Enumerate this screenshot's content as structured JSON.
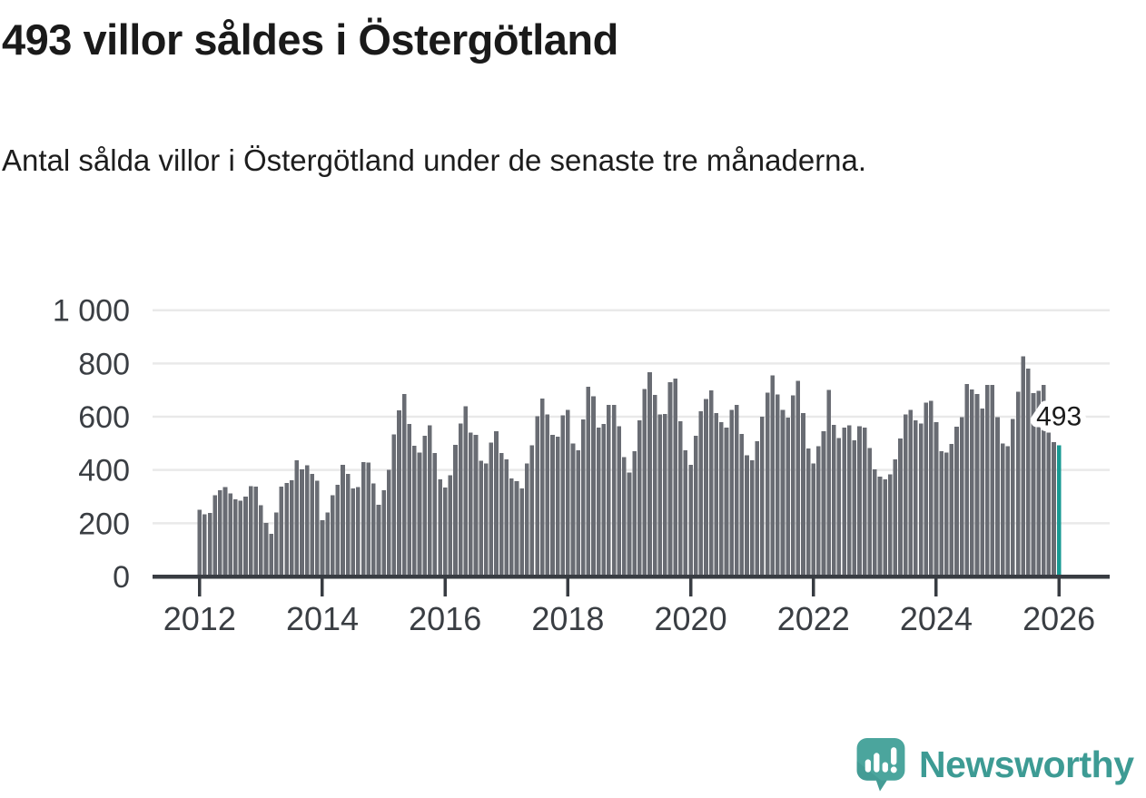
{
  "header": {
    "title": "493 villor såldes i Östergötland",
    "subtitle": "Antal sålda villor i Östergötland under de senaste tre månaderna."
  },
  "chart_data": {
    "type": "bar",
    "title": "493 villor såldes i Östergötland",
    "xlabel": "",
    "ylabel": "",
    "ylim": [
      0,
      1000
    ],
    "grid": true,
    "legend_position": "none",
    "x_start_year": 2012,
    "bars_per_year": 12,
    "y_ticks": [
      {
        "value": 0,
        "label": "0"
      },
      {
        "value": 200,
        "label": "200"
      },
      {
        "value": 400,
        "label": "400"
      },
      {
        "value": 600,
        "label": "600"
      },
      {
        "value": 800,
        "label": "800"
      },
      {
        "value": 1000,
        "label": "1 000"
      }
    ],
    "x_ticks": [
      {
        "year": 2012,
        "label": "2012"
      },
      {
        "year": 2014,
        "label": "2014"
      },
      {
        "year": 2016,
        "label": "2016"
      },
      {
        "year": 2018,
        "label": "2018"
      },
      {
        "year": 2020,
        "label": "2020"
      },
      {
        "year": 2022,
        "label": "2022"
      },
      {
        "year": 2024,
        "label": "2024"
      },
      {
        "year": 2026,
        "label": "2026"
      }
    ],
    "values": [
      250,
      233,
      238,
      305,
      324,
      335,
      312,
      290,
      285,
      300,
      340,
      338,
      267,
      202,
      160,
      240,
      337,
      352,
      362,
      436,
      402,
      417,
      385,
      360,
      212,
      240,
      305,
      345,
      420,
      385,
      330,
      335,
      430,
      428,
      350,
      270,
      324,
      400,
      534,
      624,
      686,
      573,
      491,
      466,
      528,
      567,
      464,
      364,
      334,
      381,
      494,
      574,
      640,
      540,
      532,
      435,
      424,
      503,
      545,
      464,
      440,
      369,
      358,
      330,
      424,
      492,
      602,
      668,
      608,
      532,
      525,
      606,
      625,
      500,
      474,
      590,
      712,
      676,
      559,
      572,
      644,
      644,
      565,
      449,
      390,
      471,
      587,
      704,
      767,
      682,
      608,
      611,
      730,
      744,
      583,
      474,
      420,
      528,
      621,
      667,
      699,
      614,
      580,
      559,
      625,
      644,
      536,
      455,
      437,
      508,
      600,
      691,
      756,
      684,
      625,
      597,
      680,
      735,
      614,
      481,
      424,
      489,
      545,
      700,
      570,
      520,
      560,
      567,
      511,
      565,
      559,
      483,
      403,
      375,
      364,
      383,
      440,
      519,
      608,
      625,
      587,
      574,
      653,
      659,
      580,
      471,
      466,
      497,
      562,
      599,
      723,
      702,
      685,
      631,
      720,
      720,
      599,
      500,
      489,
      591,
      693,
      826,
      781,
      688,
      697,
      719,
      540,
      505,
      493
    ],
    "highlight_last_bar": true,
    "annotation": {
      "text": "493",
      "value": 493
    },
    "colors": {
      "bar": "#696c73",
      "highlight_bar": "#189a93",
      "gridline": "#e9e9e9",
      "axis": "#383c42",
      "tick_label": "#3a3e43",
      "annotation_text": "#1a1a1a",
      "annotation_halo": "#ffffff"
    }
  },
  "footer": {
    "brand": "Newsworthy",
    "brand_color": "#3d9b94",
    "logo_icon": "speech-bubble-bar-chart-icon"
  }
}
